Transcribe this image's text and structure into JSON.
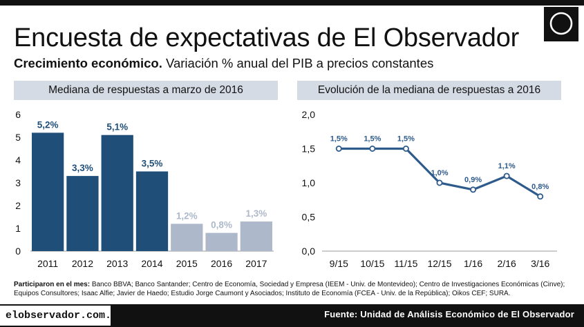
{
  "title": "Encuesta de expectativas de El Observador",
  "subtitle_bold": "Crecimiento económico.",
  "subtitle_rest": "Variación % anual del PIB a precios constantes",
  "left_panel_title": "Mediana de respuestas a marzo de 2016",
  "right_panel_title": "Evolución de la mediana de respuestas a 2016",
  "note_bold": "Participaron en el mes:",
  "note_text": "Banco BBVA; Banco Santander; Centro de Economía, Sociedad y Empresa (IEEM - Univ. de Montevideo); Centro de Investigaciones Económicas (Cinve); Equipos Consultores; Isaac Alfie; Javier de Haedo; Estudio Jorge Caumont y Asociados; Instituto de Economía (FCEA - Univ. de la República); Oikos CEF; SURA.",
  "footer_site": "elobservador.com.uy",
  "footer_source": "Fuente: Unidad de Análisis Económico de El Observador",
  "colors": {
    "dark_bar": "#1f4e79",
    "light_bar": "#adb9ca",
    "line": "#2e5a8c",
    "panel_header": "#d5dbe4",
    "footer": "#111111"
  },
  "chart_data": [
    {
      "type": "bar",
      "title": "Mediana de respuestas a marzo de 2016",
      "categories": [
        "2011",
        "2012",
        "2013",
        "2014",
        "2015",
        "2016",
        "2017"
      ],
      "values": [
        5.2,
        3.3,
        5.1,
        3.5,
        1.2,
        0.8,
        1.3
      ],
      "labels": [
        "5,2%",
        "3,3%",
        "5,1%",
        "3,5%",
        "1,2%",
        "0,8%",
        "1,3%"
      ],
      "highlight": [
        "dark",
        "dark",
        "dark",
        "dark",
        "light",
        "light",
        "light"
      ],
      "ylim": [
        0,
        6
      ],
      "yticks": [
        "0",
        "1",
        "2",
        "3",
        "4",
        "5",
        "6"
      ],
      "grid": false
    },
    {
      "type": "line",
      "title": "Evolución de la mediana de respuestas a 2016",
      "categories": [
        "9/15",
        "10/15",
        "11/15",
        "12/15",
        "1/16",
        "2/16",
        "3/16"
      ],
      "values": [
        1.5,
        1.5,
        1.5,
        1.0,
        0.9,
        1.1,
        0.8
      ],
      "labels": [
        "1,5%",
        "1,5%",
        "1,5%",
        "1,0%",
        "0,9%",
        "1,1%",
        "0,8%"
      ],
      "ylim": [
        0,
        2
      ],
      "yticks": [
        "0,0",
        "0,5",
        "1,0",
        "1,5",
        "2,0"
      ],
      "grid": false
    }
  ]
}
